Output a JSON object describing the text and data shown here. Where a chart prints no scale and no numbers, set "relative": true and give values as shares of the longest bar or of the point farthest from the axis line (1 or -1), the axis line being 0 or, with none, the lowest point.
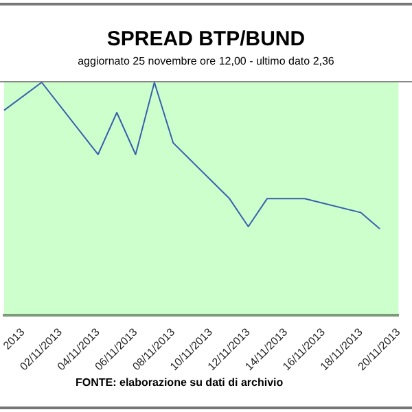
{
  "chart_data": {
    "type": "line",
    "title": "SPREAD BTP/BUND",
    "subtitle": "aggiornato 25 novembre ore 12,00 - ultimo dato 2,36",
    "annotations": [
      "FONTE: elaborazione su dati di archivio"
    ],
    "categories": [
      null,
      "2013",
      null,
      "02/11/2013",
      null,
      "04/11/2013",
      null,
      "06/11/2013",
      null,
      "08/11/2013",
      null,
      "10/11/2013",
      null,
      "12/11/2013",
      null,
      "14/11/2013",
      null,
      "16/11/2013",
      null,
      "18/11/2013",
      null,
      "20/11/2013"
    ],
    "series": [
      {
        "color": "#3a5fae",
        "values": [
          0.88,
          null,
          1,
          null,
          null,
          0.69,
          0.87,
          0.69,
          1,
          0.74,
          null,
          null,
          0.5,
          0.38,
          0.5,
          null,
          0.5,
          null,
          null,
          0.44,
          0.37,
          null
        ]
      }
    ],
    "relative": true,
    "legend": false,
    "marker": "none",
    "line_style": "solid"
  }
}
